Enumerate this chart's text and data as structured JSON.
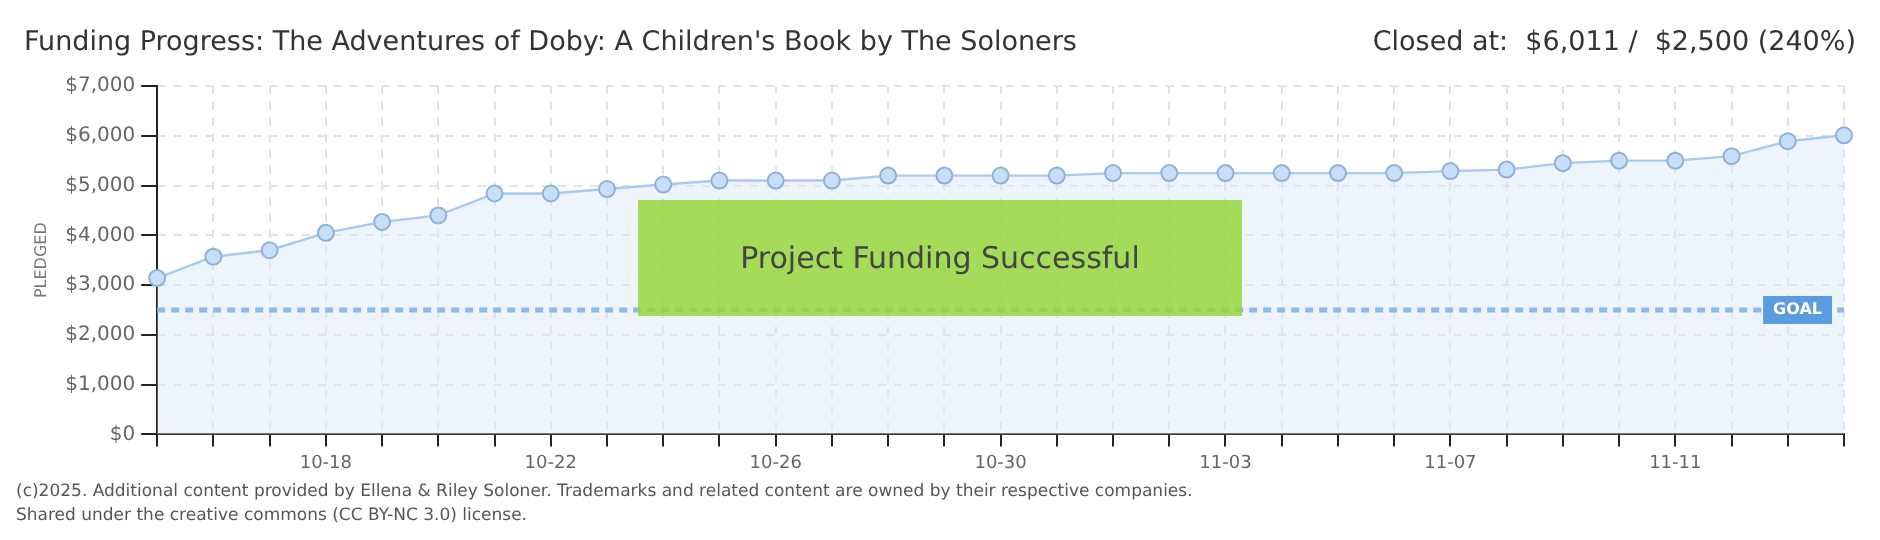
{
  "chart_data": {
    "type": "area",
    "title": "Funding Progress: The Adventures of Doby: A Children's Book by The Soloners",
    "subtitle": "Closed at:  $6,011 /  $2,500 (240%)",
    "ylabel": "PLEDGED",
    "categories": [
      null,
      null,
      null,
      "10-18",
      null,
      null,
      null,
      "10-22",
      null,
      null,
      null,
      "10-26",
      null,
      null,
      null,
      "10-30",
      null,
      null,
      null,
      "11-03",
      null,
      null,
      null,
      "11-07",
      null,
      null,
      null,
      "11-11",
      null,
      null,
      null
    ],
    "series": [
      {
        "color": "#a9c9ee",
        "values": [
          3140,
          3570,
          3700,
          4050,
          4270,
          4400,
          4840,
          4840,
          4930,
          5020,
          5100,
          5100,
          5100,
          5200,
          5200,
          5200,
          5200,
          5250,
          5250,
          5250,
          5250,
          5250,
          5250,
          5290,
          5320,
          5450,
          5500,
          5500,
          5590,
          5890,
          6010
        ]
      }
    ],
    "ylim": [
      0,
      7000
    ],
    "yticks": [
      {
        "value": 0,
        "label": "$0"
      },
      {
        "value": 1000,
        "label": "$1,000"
      },
      {
        "value": 2000,
        "label": "$2,000"
      },
      {
        "value": 3000,
        "label": "$3,000"
      },
      {
        "value": 4000,
        "label": "$4,000"
      },
      {
        "value": 5000,
        "label": "$5,000"
      },
      {
        "value": 6000,
        "label": "$6,000"
      },
      {
        "value": 7000,
        "label": "$7,000"
      }
    ],
    "grid": true,
    "legend": false,
    "marker": "circle",
    "ref_lines": [
      {
        "axis": "y",
        "value": 2500,
        "label": "GOAL",
        "color": "#8fb8e8",
        "line_style": "dashed"
      }
    ],
    "annotations": [
      "Project Funding Successful",
      "(c)2025. Additional content provided by Ellena & Riley Soloner. Trademarks and related content are owned by their respective companies.",
      "Shared under the creative commons (CC BY-NC 3.0) license."
    ]
  }
}
